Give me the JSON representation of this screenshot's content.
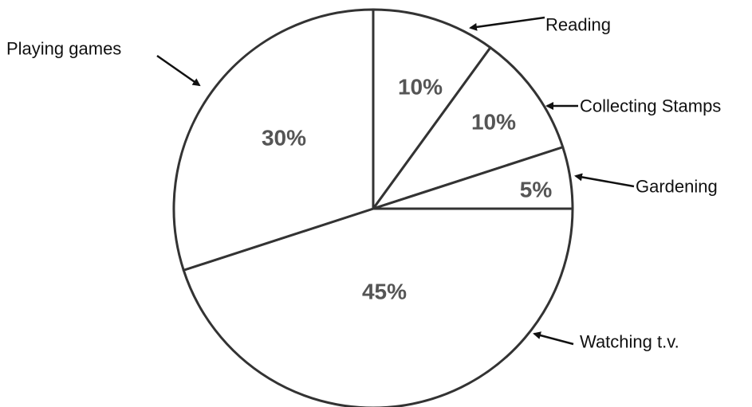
{
  "chart_data": {
    "type": "pie",
    "title": "",
    "slices": [
      {
        "label": "Reading",
        "value": 10,
        "value_label": "10%",
        "color": "#ffffff"
      },
      {
        "label": "Collecting Stamps",
        "value": 10,
        "value_label": "10%",
        "color": "#ffffff"
      },
      {
        "label": "Gardening",
        "value": 5,
        "value_label": "5%",
        "color": "#ffffff"
      },
      {
        "label": "Watching t.v.",
        "value": 45,
        "value_label": "45%",
        "color": "#ffffff"
      },
      {
        "label": "Playing games",
        "value": 30,
        "value_label": "30%",
        "color": "#ffffff"
      }
    ],
    "start_angle_deg": 0,
    "direction": "clockwise",
    "legend": "none",
    "outline_color": "#333333",
    "value_label_color": "#555555",
    "category_label_color": "#111111"
  }
}
